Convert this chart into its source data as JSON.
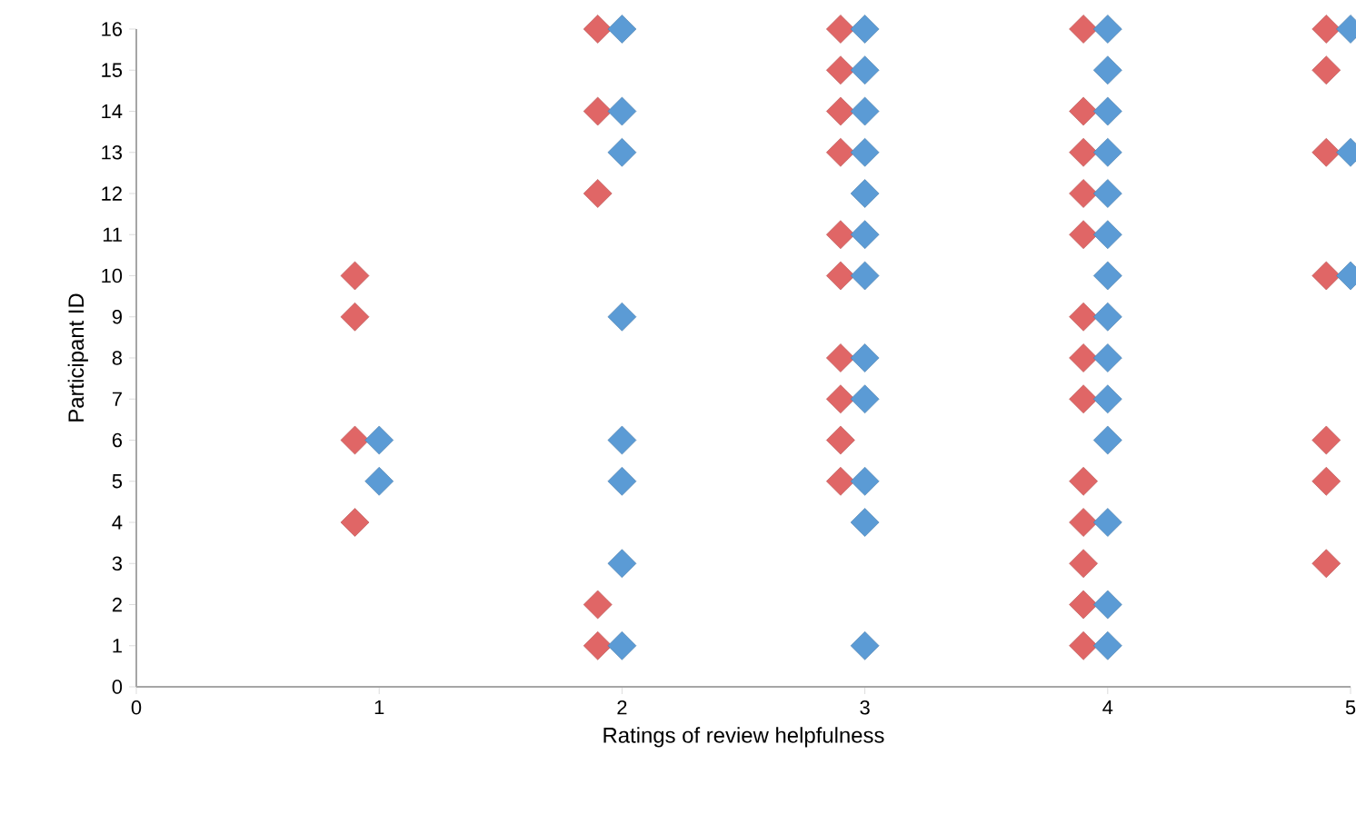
{
  "chart_data": {
    "type": "scatter",
    "xlabel": "Ratings of review helpfulness",
    "ylabel": "Participant ID",
    "xlim": [
      0,
      5
    ],
    "xticks": [
      0,
      1,
      2,
      3,
      4,
      5
    ],
    "ylim": [
      0,
      16
    ],
    "yticks": [
      0,
      1,
      2,
      3,
      4,
      5,
      6,
      7,
      8,
      9,
      10,
      11,
      12,
      13,
      14,
      15,
      16
    ],
    "grid": false,
    "marker": "diamond",
    "series": [
      {
        "color": "#e06666",
        "x": [
          0.9,
          0.9,
          0.9,
          0.9,
          1.9,
          1.9,
          1.9,
          1.9,
          1.9,
          2.9,
          2.9,
          2.9,
          2.9,
          2.9,
          2.9,
          2.9,
          2.9,
          2.9,
          2.9,
          3.9,
          3.9,
          3.9,
          3.9,
          3.9,
          3.9,
          3.9,
          3.9,
          3.9,
          3.9,
          3.9,
          3.9,
          3.9,
          4.9,
          4.9,
          4.9,
          4.9,
          4.9,
          4.9,
          4.9
        ],
        "values": [
          10,
          9,
          6,
          4,
          16,
          14,
          12,
          2,
          1,
          16,
          15,
          14,
          13,
          11,
          10,
          8,
          7,
          6,
          5,
          16,
          14,
          13,
          12,
          11,
          9,
          8,
          7,
          5,
          4,
          3,
          2,
          1,
          16,
          15,
          13,
          10,
          6,
          5,
          3
        ]
      },
      {
        "color": "#5b9bd5",
        "x": [
          1,
          1,
          2,
          2,
          2,
          2,
          2,
          2,
          2,
          2,
          3,
          3,
          3,
          3,
          3,
          3,
          3,
          3,
          3,
          3,
          3,
          3,
          4,
          4,
          4,
          4,
          4,
          4,
          4,
          4,
          4,
          4,
          4,
          4,
          4,
          4,
          5,
          5,
          5
        ],
        "values": [
          6,
          5,
          16,
          14,
          13,
          9,
          6,
          5,
          3,
          1,
          16,
          15,
          14,
          13,
          12,
          11,
          10,
          8,
          7,
          5,
          4,
          1,
          16,
          15,
          14,
          13,
          12,
          11,
          10,
          9,
          8,
          7,
          6,
          4,
          2,
          1,
          16,
          13,
          10
        ]
      }
    ]
  }
}
